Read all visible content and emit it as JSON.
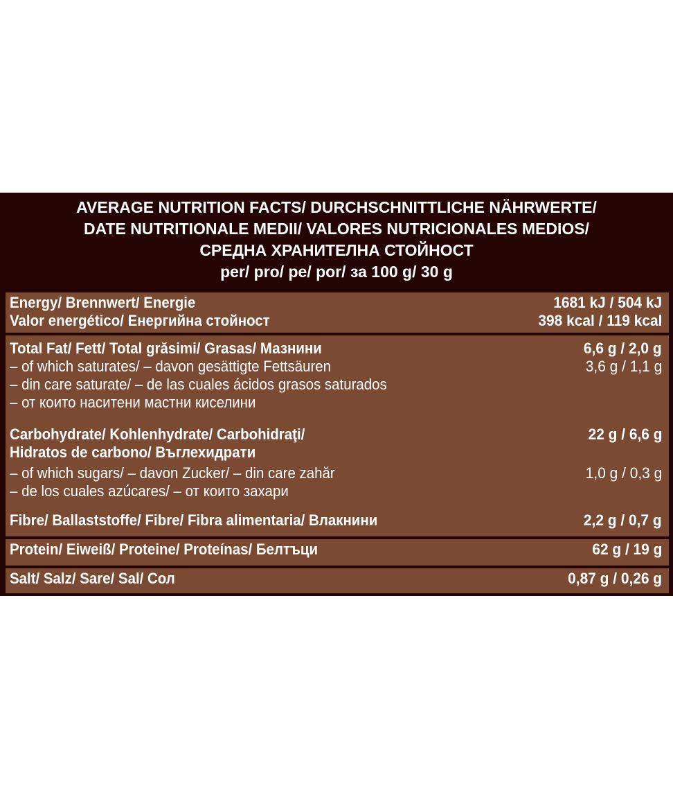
{
  "header": {
    "line1": "AVERAGE NUTRITION FACTS/ DURCHSCHNITTLICHE NÄHRWERTE/",
    "line2": "DATE NUTRITIONALE MEDII/ VALORES NUTRICIONALES MEDIOS/",
    "line3": "СРЕДНА ХРАНИТЕЛНА СТОЙНОСТ",
    "line4": "per/ pro/ pe/ por/ за 100 g/ 30 g"
  },
  "rows": {
    "energy": {
      "label1": "Energy/ Brennwert/ Energie",
      "value1": "1681 kJ / 504 kJ",
      "label2": "Valor energético/ Енергийна стойност",
      "value2": "398 kcal / 119 kcal"
    },
    "fat": {
      "label": "Total Fat/ Fett/ Total grăsimi/ Grasas/ Мазнини",
      "value": "6,6 g / 2,0 g",
      "sub1": "– of which saturates/ – davon gesättigte Fettsäuren",
      "sub_value": "3,6 g / 1,1 g",
      "sub2": "– din care saturate/ – de las cuales ácidos grasos saturados",
      "sub3": "– от които наситени мастни киселини"
    },
    "carbs": {
      "label1": "Carbohydrate/ Kohlenhydrate/ Carbohidraţi/",
      "value": "22 g / 6,6 g",
      "label2": "Hidratos de carbono/ Въглехидрати",
      "sub1": "– of which sugars/ – davon Zucker/ – din care zahăr",
      "sub_value": "1,0 g / 0,3 g",
      "sub2": "– de los cuales azúcares/ – от които захари"
    },
    "fibre": {
      "label": "Fibre/ Ballaststoffe/ Fibre/ Fibra alimentaria/ Влакнини",
      "value": "2,2 g / 0,7 g"
    },
    "protein": {
      "label": "Protein/ Eiweiß/ Proteine/ Proteínas/ Белтъци",
      "value": "62 g / 19 g"
    },
    "salt": {
      "label": "Salt/ Salz/ Sare/ Sal/ Сол",
      "value": "0,87 g / 0,26 g"
    }
  },
  "colors": {
    "header_bg": "#240404",
    "row_bg": "#7a4a32",
    "text": "#ffffff"
  }
}
